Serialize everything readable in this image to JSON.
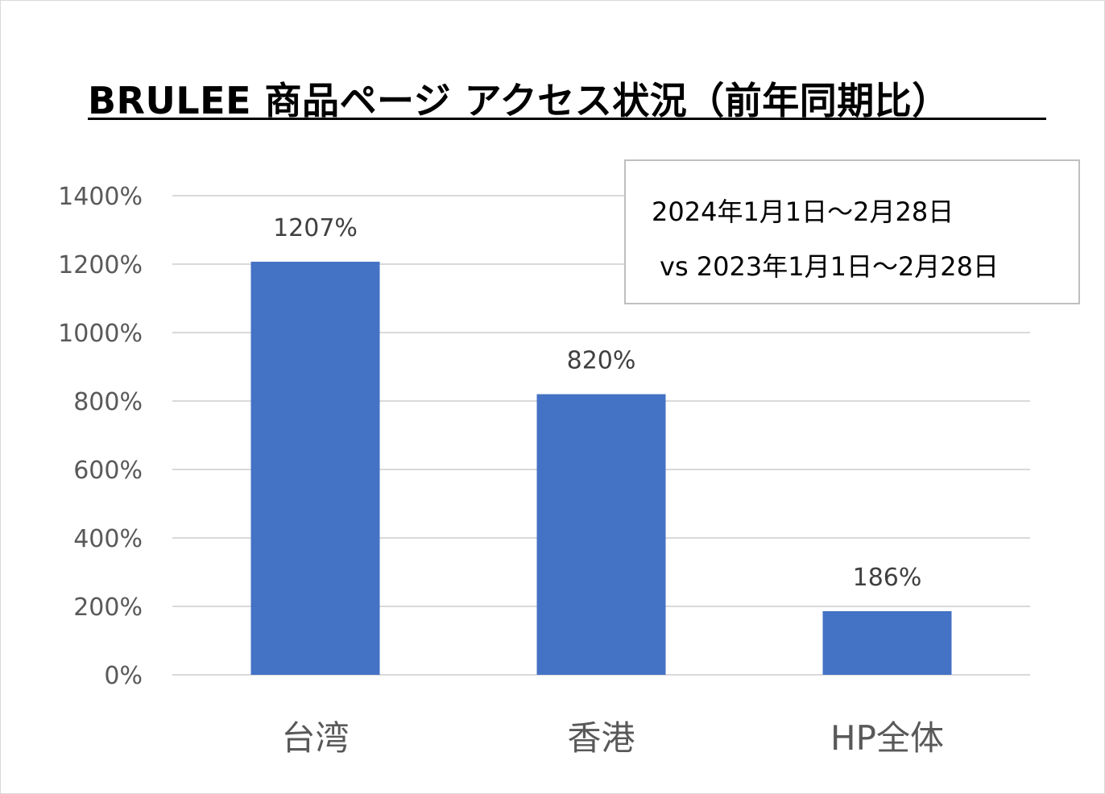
{
  "chart_data": {
    "type": "bar",
    "title": "BRULEE 商品ページ アクセス状況（前年同期比）",
    "categories": [
      "台湾",
      "香港",
      "HP全体"
    ],
    "values": [
      1207,
      820,
      186
    ],
    "data_labels": [
      "1207%",
      "820%",
      "186%"
    ],
    "ylim": [
      0,
      1400
    ],
    "yticks": [
      0,
      200,
      400,
      600,
      800,
      1000,
      1200,
      1400
    ],
    "ytick_labels": [
      "0%",
      "200%",
      "400%",
      "600%",
      "800%",
      "1000%",
      "1200%",
      "1400%"
    ],
    "grid": true,
    "bar_color": "#4472c4",
    "gridline_color": "#d9d9d9",
    "annotation": {
      "line1": "2024年1月1日～2月28日",
      "line2": "vs 2023年1月1日～2月28日",
      "placement": "top-right"
    }
  }
}
